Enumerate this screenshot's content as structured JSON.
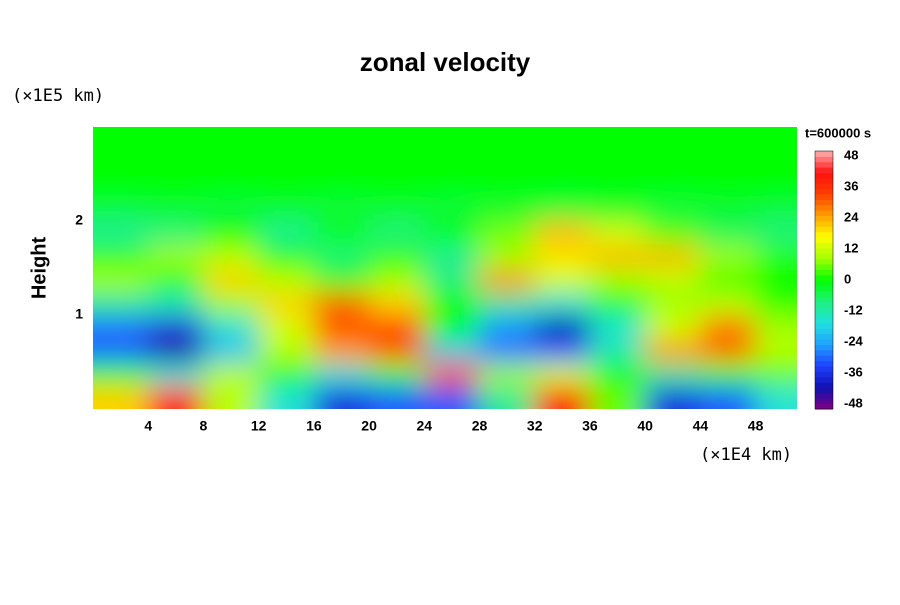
{
  "chart_data": {
    "type": "contour",
    "title": "zonal velocity",
    "xlabel": "(×1E4 km)",
    "ylabel": "Height",
    "yunit": "(×1E5 km)",
    "colorbar_title": "t=600000 s",
    "xlim": [
      0,
      51
    ],
    "ylim": [
      0,
      3
    ],
    "xticks": [
      4,
      8,
      12,
      16,
      20,
      24,
      28,
      32,
      36,
      40,
      44,
      48
    ],
    "yticks": [
      1,
      2
    ],
    "zlim": [
      -48,
      48
    ],
    "zticks": [
      48,
      36,
      24,
      12,
      0,
      -12,
      -24,
      -36,
      -48
    ],
    "colormap": [
      "#800080",
      "#1010b0",
      "#2040ff",
      "#20a0ff",
      "#20e0e0",
      "#20f080",
      "#00ff00",
      "#a0ff00",
      "#ffff00",
      "#ffa000",
      "#ff4000",
      "#ff1010",
      "#ffb0b0"
    ],
    "x": [
      2,
      6,
      10,
      14,
      18,
      22,
      26,
      30,
      34,
      38,
      42,
      46,
      50
    ],
    "y": [
      0.125,
      0.375,
      0.625,
      0.875,
      1.125,
      1.375,
      1.625,
      1.875,
      2.125,
      2.375,
      2.625,
      2.875
    ],
    "z": [
      [
        20,
        40,
        10,
        -15,
        -35,
        -30,
        -30,
        -10,
        40,
        5,
        -35,
        -30,
        -15
      ],
      [
        0,
        -15,
        10,
        0,
        -15,
        0,
        30,
        8,
        12,
        0,
        -10,
        0,
        5
      ],
      [
        -30,
        -42,
        -20,
        10,
        25,
        30,
        -20,
        -28,
        -30,
        -12,
        25,
        28,
        10
      ],
      [
        -28,
        -35,
        -15,
        12,
        30,
        32,
        0,
        -25,
        -40,
        -15,
        12,
        28,
        8
      ],
      [
        -10,
        -12,
        8,
        20,
        30,
        20,
        0,
        -10,
        -15,
        0,
        8,
        10,
        2
      ],
      [
        8,
        2,
        20,
        10,
        2,
        8,
        -8,
        25,
        12,
        8,
        10,
        3,
        0
      ],
      [
        2,
        8,
        10,
        0,
        -8,
        2,
        -10,
        8,
        18,
        22,
        22,
        8,
        2
      ],
      [
        -10,
        -8,
        0,
        -10,
        0,
        -8,
        0,
        6,
        22,
        12,
        4,
        -6,
        -8
      ],
      [
        -4,
        -3,
        -4,
        -3,
        -4,
        -3,
        -4,
        -3,
        -4,
        -3,
        -4,
        -3,
        -4
      ],
      [
        0,
        0,
        0,
        0,
        0,
        0,
        0,
        0,
        0,
        0,
        0,
        0,
        0
      ],
      [
        0,
        0,
        0,
        0,
        0,
        0,
        0,
        0,
        0,
        0,
        0,
        0,
        0
      ],
      [
        0,
        0,
        0,
        0,
        0,
        0,
        0,
        0,
        0,
        0,
        0,
        0,
        0
      ]
    ]
  }
}
